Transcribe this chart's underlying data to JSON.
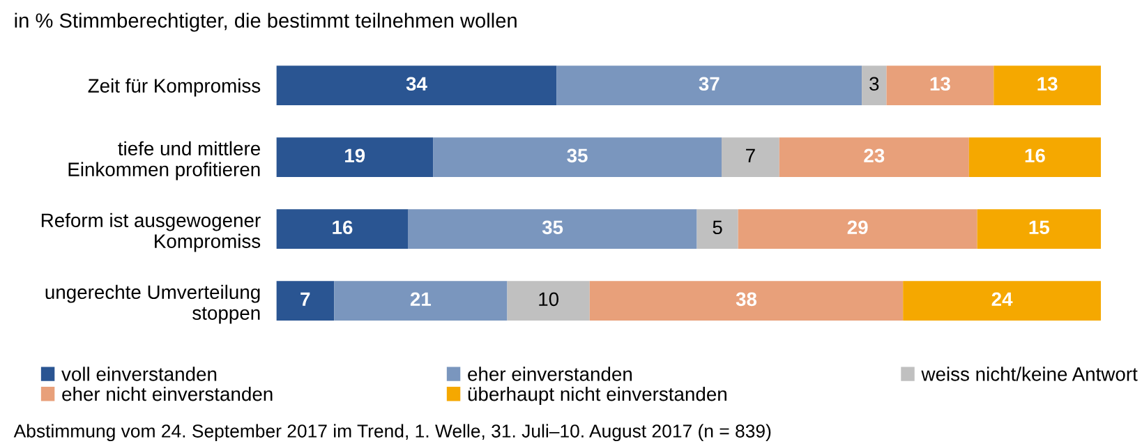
{
  "chart_data": {
    "type": "bar",
    "orientation": "horizontal",
    "stacked": true,
    "data_labels": true,
    "legend": "bottom",
    "grid": false,
    "title": "in % Stimmberechtigter, die bestimmt teilnehmen wollen",
    "categories": [
      "Zeit für Kompromiss",
      "tiefe und mittlere\nEinkommen profitieren",
      "Reform ist ausgewogener\nKompromiss",
      "ungerechte Umverteilung\nstoppen"
    ],
    "series": [
      {
        "name": "voll einverstanden",
        "color": "#2a5592",
        "values": [
          34,
          19,
          16,
          7
        ]
      },
      {
        "name": "eher einverstanden",
        "color": "#7a96be",
        "values": [
          37,
          35,
          35,
          21
        ]
      },
      {
        "name": "weiss nicht/keine Antwort",
        "color": "#c0c0c0",
        "values": [
          3,
          7,
          5,
          10
        ]
      },
      {
        "name": "eher nicht einverstanden",
        "color": "#e8a07a",
        "values": [
          13,
          23,
          29,
          38
        ]
      },
      {
        "name": "überhaupt nicht einverstanden",
        "color": "#f5a800",
        "values": [
          13,
          16,
          15,
          24
        ]
      }
    ],
    "annotations": [
      "Abstimmung vom 24. September 2017 im Trend, 1. Welle, 31. Juli–10. August 2017 (n = 839)"
    ]
  }
}
